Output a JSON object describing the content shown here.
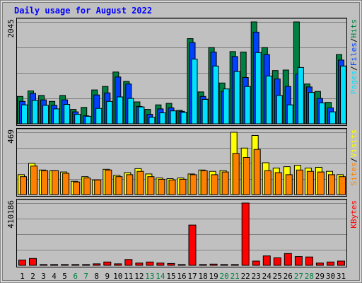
{
  "chart_data": {
    "type": "bar",
    "title": "Daily usage for August 2022",
    "categories": [
      "1",
      "2",
      "3",
      "4",
      "5",
      "6",
      "7",
      "8",
      "9",
      "10",
      "11",
      "12",
      "13",
      "14",
      "15",
      "16",
      "17",
      "18",
      "19",
      "20",
      "21",
      "22",
      "23",
      "24",
      "25",
      "26",
      "27",
      "28",
      "29",
      "30",
      "31"
    ],
    "weekend_days": [
      "6",
      "7",
      "13",
      "14",
      "20",
      "21",
      "27",
      "28"
    ],
    "colors": {
      "title": "#0000ff",
      "background": "#c0c0c0",
      "grid": "#808080",
      "hits": "#008040",
      "files": "#0040ff",
      "pages": "#00e0ff",
      "visits": "#ffff00",
      "sites": "#ff8000",
      "kbytes": "#ff0000",
      "weekday_label": "#000000",
      "weekend_label": "#008040"
    },
    "panels": [
      {
        "id": "hits-files-pages",
        "max_label": "2045",
        "ylim": [
          0,
          2045
        ],
        "legend": [
          {
            "label": "Pages",
            "color": "#00e0ff"
          },
          {
            "label": "/",
            "color": "#000000"
          },
          {
            "label": "Files",
            "color": "#0040ff"
          },
          {
            "label": "/",
            "color": "#000000"
          },
          {
            "label": "Hits",
            "color": "#008040"
          }
        ],
        "series": [
          {
            "name": "Hits",
            "color": "#008040",
            "values": [
              550,
              660,
              570,
              450,
              570,
              290,
              330,
              680,
              750,
              1040,
              850,
              440,
              290,
              380,
              410,
              270,
              1710,
              640,
              1530,
              820,
              1450,
              1440,
              2045,
              1530,
              1070,
              1080,
              2045,
              800,
              650,
              430,
              1390
            ]
          },
          {
            "name": "Files",
            "color": "#0040ff",
            "values": [
              450,
              610,
              480,
              370,
              480,
              240,
              160,
              580,
              620,
              940,
              800,
              350,
              190,
              300,
              320,
              250,
              1630,
              550,
              1440,
              650,
              1350,
              930,
              1840,
              1390,
              900,
              750,
              1000,
              740,
              510,
              320,
              1280
            ]
          },
          {
            "name": "Pages",
            "color": "#00e0ff",
            "values": [
              380,
              470,
              370,
              300,
              390,
              190,
              150,
              310,
              450,
              540,
              510,
              340,
              130,
              220,
              260,
              230,
              1300,
              490,
              1160,
              700,
              1050,
              750,
              1430,
              960,
              570,
              380,
              1130,
              630,
              420,
              240,
              1160
            ]
          }
        ]
      },
      {
        "id": "visits-sites",
        "max_label": "469",
        "ylim": [
          0,
          469
        ],
        "legend": [
          {
            "label": "Sites",
            "color": "#ff8000"
          },
          {
            "label": "/",
            "color": "#000000"
          },
          {
            "label": "Visits",
            "color": "#ffff00"
          }
        ],
        "series": [
          {
            "name": "Visits",
            "color": "#ffff00",
            "values": [
              150,
              235,
              185,
              180,
              170,
              100,
              135,
              110,
              190,
              145,
              165,
              195,
              155,
              125,
              120,
              125,
              155,
              185,
              175,
              180,
              469,
              350,
              445,
              240,
              200,
              210,
              220,
              200,
              205,
              175,
              150
            ]
          },
          {
            "name": "Sites",
            "color": "#ff8000",
            "values": [
              135,
              215,
              180,
              180,
              160,
              95,
              125,
              110,
              185,
              135,
              150,
              175,
              135,
              115,
              110,
              115,
              150,
              180,
              150,
              170,
              310,
              280,
              340,
              180,
              165,
              150,
              185,
              175,
              170,
              150,
              135
            ]
          }
        ]
      },
      {
        "id": "kbytes",
        "max_label": "410186",
        "ylim": [
          0,
          410186
        ],
        "legend": [
          {
            "label": "KBytes",
            "color": "#ff0000"
          }
        ],
        "series": [
          {
            "name": "KBytes",
            "color": "#ff0000",
            "values": [
              35000,
              45000,
              5000,
              5000,
              5000,
              5000,
              5000,
              10000,
              22000,
              10000,
              38000,
              15000,
              22000,
              15000,
              12000,
              5000,
              265000,
              5000,
              8000,
              5000,
              5000,
              410186,
              28000,
              62000,
              50000,
              78000,
              58000,
              55000,
              15000,
              22000,
              28000
            ]
          }
        ]
      }
    ]
  }
}
